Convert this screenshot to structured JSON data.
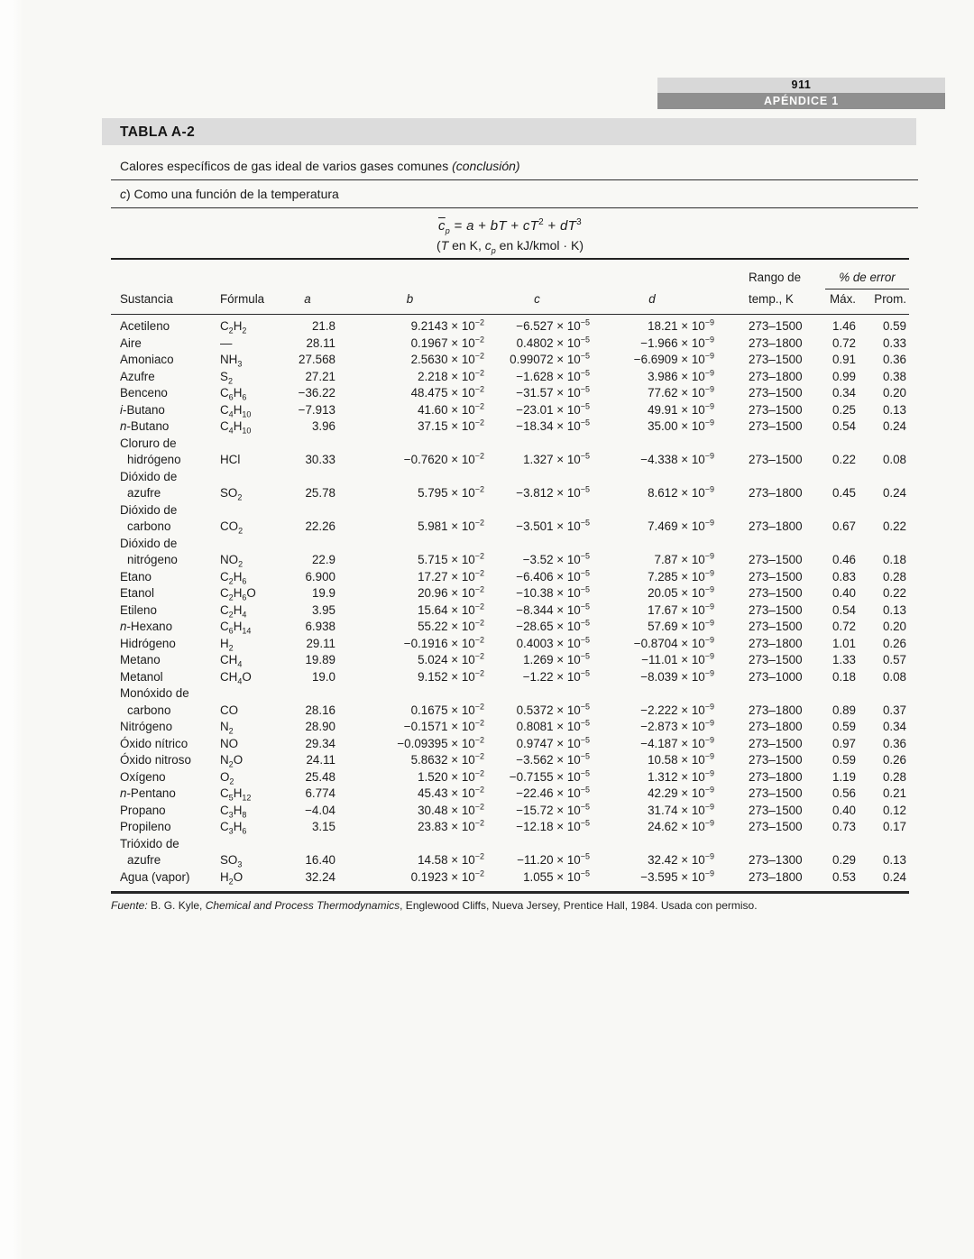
{
  "header": {
    "page_number": "911",
    "appendix_label": "APÉNDICE 1"
  },
  "table": {
    "title": "TABLA A-2",
    "subtitle": [
      {
        "t": "Calores específicos de gas ideal de varios gases comunes "
      },
      {
        "t": "(conclusión)",
        "i": true
      }
    ],
    "part_label": [
      {
        "t": "c",
        "i": true
      },
      {
        "t": ") Como una función de la temperatura"
      }
    ],
    "equation": {
      "main": [
        {
          "t": "c",
          "i": true,
          "ov": true
        },
        {
          "t": "p",
          "i": true,
          "sub": true
        },
        {
          "t": " = "
        },
        {
          "t": "a",
          "i": true
        },
        {
          "t": " + "
        },
        {
          "t": "bT",
          "i": true
        },
        {
          "t": " + "
        },
        {
          "t": "cT",
          "i": true
        },
        {
          "t": "2",
          "sup": true
        },
        {
          "t": " + "
        },
        {
          "t": "dT",
          "i": true
        },
        {
          "t": "3",
          "sup": true
        }
      ],
      "units": [
        {
          "t": "("
        },
        {
          "t": "T",
          "i": true
        },
        {
          "t": " en K, "
        },
        {
          "t": "c",
          "i": true
        },
        {
          "t": "p",
          "i": true,
          "sub": true
        },
        {
          "t": " en kJ/kmol · K)"
        }
      ]
    },
    "columns": {
      "substance": "Sustancia",
      "formula": "Fórmula",
      "a": "a",
      "b": "b",
      "c": "c",
      "d": "d",
      "range_line1": "Rango de",
      "range_line2": "temp., K",
      "error_group": "% de error",
      "max": "Máx.",
      "prom": "Prom."
    },
    "exponents": {
      "b": "−2",
      "c": "−5",
      "d": "−9"
    },
    "rows": [
      {
        "name": [
          [
            {
              "t": "Acetileno"
            }
          ]
        ],
        "formula": "C2H2",
        "a": "21.8",
        "b": "9.2143",
        "c": "−6.527",
        "d": "18.21",
        "range": "273–1500",
        "max": "1.46",
        "prom": "0.59"
      },
      {
        "name": [
          [
            {
              "t": "Aire"
            }
          ]
        ],
        "formula": "—",
        "a": "28.11",
        "b": "0.1967",
        "c": "0.4802",
        "d": "−1.966",
        "range": "273–1800",
        "max": "0.72",
        "prom": "0.33"
      },
      {
        "name": [
          [
            {
              "t": "Amoniaco"
            }
          ]
        ],
        "formula": "NH3",
        "a": "27.568",
        "b": "2.5630",
        "c": "0.99072",
        "d": "−6.6909",
        "range": "273–1500",
        "max": "0.91",
        "prom": "0.36"
      },
      {
        "name": [
          [
            {
              "t": "Azufre"
            }
          ]
        ],
        "formula": "S2",
        "a": "27.21",
        "b": "2.218",
        "c": "−1.628",
        "d": "3.986",
        "range": "273–1800",
        "max": "0.99",
        "prom": "0.38"
      },
      {
        "name": [
          [
            {
              "t": "Benceno"
            }
          ]
        ],
        "formula": "C6H6",
        "a": "−36.22",
        "b": "48.475",
        "c": "−31.57",
        "d": "77.62",
        "range": "273–1500",
        "max": "0.34",
        "prom": "0.20"
      },
      {
        "name": [
          [
            {
              "t": "i",
              "i": true
            },
            {
              "t": "-Butano"
            }
          ]
        ],
        "formula": "C4H10",
        "a": "−7.913",
        "b": "41.60",
        "c": "−23.01",
        "d": "49.91",
        "range": "273–1500",
        "max": "0.25",
        "prom": "0.13"
      },
      {
        "name": [
          [
            {
              "t": "n",
              "i": true
            },
            {
              "t": "-Butano"
            }
          ]
        ],
        "formula": "C4H10",
        "a": "3.96",
        "b": "37.15",
        "c": "−18.34",
        "d": "35.00",
        "range": "273–1500",
        "max": "0.54",
        "prom": "0.24"
      },
      {
        "name": [
          [
            {
              "t": "Cloruro de"
            }
          ],
          [
            {
              "t": "hidrógeno"
            }
          ]
        ],
        "formula": "HCl",
        "a": "30.33",
        "b": "−0.7620",
        "c": "1.327",
        "d": "−4.338",
        "range": "273–1500",
        "max": "0.22",
        "prom": "0.08"
      },
      {
        "name": [
          [
            {
              "t": "Dióxido de"
            }
          ],
          [
            {
              "t": "azufre"
            }
          ]
        ],
        "formula": "SO2",
        "a": "25.78",
        "b": "5.795",
        "c": "−3.812",
        "d": "8.612",
        "range": "273–1800",
        "max": "0.45",
        "prom": "0.24"
      },
      {
        "name": [
          [
            {
              "t": "Dióxido de"
            }
          ],
          [
            {
              "t": "carbono"
            }
          ]
        ],
        "formula": "CO2",
        "a": "22.26",
        "b": "5.981",
        "c": "−3.501",
        "d": "7.469",
        "range": "273–1800",
        "max": "0.67",
        "prom": "0.22"
      },
      {
        "name": [
          [
            {
              "t": "Dióxido de"
            }
          ],
          [
            {
              "t": "nitrógeno"
            }
          ]
        ],
        "formula": "NO2",
        "a": "22.9",
        "b": "5.715",
        "c": "−3.52",
        "d": "7.87",
        "range": "273–1500",
        "max": "0.46",
        "prom": "0.18"
      },
      {
        "name": [
          [
            {
              "t": "Etano"
            }
          ]
        ],
        "formula": "C2H6",
        "a": "6.900",
        "b": "17.27",
        "c": "−6.406",
        "d": "7.285",
        "range": "273–1500",
        "max": "0.83",
        "prom": "0.28"
      },
      {
        "name": [
          [
            {
              "t": "Etanol"
            }
          ]
        ],
        "formula": "C2H6O",
        "a": "19.9",
        "b": "20.96",
        "c": "−10.38",
        "d": "20.05",
        "range": "273–1500",
        "max": "0.40",
        "prom": "0.22"
      },
      {
        "name": [
          [
            {
              "t": "Etileno"
            }
          ]
        ],
        "formula": "C2H4",
        "a": "3.95",
        "b": "15.64",
        "c": "−8.344",
        "d": "17.67",
        "range": "273–1500",
        "max": "0.54",
        "prom": "0.13"
      },
      {
        "name": [
          [
            {
              "t": "n",
              "i": true
            },
            {
              "t": "-Hexano"
            }
          ]
        ],
        "formula": "C6H14",
        "a": "6.938",
        "b": "55.22",
        "c": "−28.65",
        "d": "57.69",
        "range": "273–1500",
        "max": "0.72",
        "prom": "0.20"
      },
      {
        "name": [
          [
            {
              "t": "Hidrógeno"
            }
          ]
        ],
        "formula": "H2",
        "a": "29.11",
        "b": "−0.1916",
        "c": "0.4003",
        "d": "−0.8704",
        "range": "273–1800",
        "max": "1.01",
        "prom": "0.26"
      },
      {
        "name": [
          [
            {
              "t": "Metano"
            }
          ]
        ],
        "formula": "CH4",
        "a": "19.89",
        "b": "5.024",
        "c": "1.269",
        "d": "−11.01",
        "range": "273–1500",
        "max": "1.33",
        "prom": "0.57"
      },
      {
        "name": [
          [
            {
              "t": "Metanol"
            }
          ]
        ],
        "formula": "CH4O",
        "a": "19.0",
        "b": "9.152",
        "c": "−1.22",
        "d": "−8.039",
        "range": "273–1000",
        "max": "0.18",
        "prom": "0.08"
      },
      {
        "name": [
          [
            {
              "t": "Monóxido de"
            }
          ],
          [
            {
              "t": "carbono"
            }
          ]
        ],
        "formula": "CO",
        "a": "28.16",
        "b": "0.1675",
        "c": "0.5372",
        "d": "−2.222",
        "range": "273–1800",
        "max": "0.89",
        "prom": "0.37"
      },
      {
        "name": [
          [
            {
              "t": "Nitrógeno"
            }
          ]
        ],
        "formula": "N2",
        "a": "28.90",
        "b": "−0.1571",
        "c": "0.8081",
        "d": "−2.873",
        "range": "273–1800",
        "max": "0.59",
        "prom": "0.34"
      },
      {
        "name": [
          [
            {
              "t": "Óxido nítrico"
            }
          ]
        ],
        "formula": "NO",
        "a": "29.34",
        "b": "−0.09395",
        "c": "0.9747",
        "d": "−4.187",
        "range": "273–1500",
        "max": "0.97",
        "prom": "0.36"
      },
      {
        "name": [
          [
            {
              "t": "Óxido nitroso"
            }
          ]
        ],
        "formula": "N2O",
        "a": "24.11",
        "b": "5.8632",
        "c": "−3.562",
        "d": "10.58",
        "range": "273–1500",
        "max": "0.59",
        "prom": "0.26"
      },
      {
        "name": [
          [
            {
              "t": "Oxígeno"
            }
          ]
        ],
        "formula": "O2",
        "a": "25.48",
        "b": "1.520",
        "c": "−0.7155",
        "d": "1.312",
        "range": "273–1800",
        "max": "1.19",
        "prom": "0.28"
      },
      {
        "name": [
          [
            {
              "t": "n",
              "i": true
            },
            {
              "t": "-Pentano"
            }
          ]
        ],
        "formula": "C5H12",
        "a": "6.774",
        "b": "45.43",
        "c": "−22.46",
        "d": "42.29",
        "range": "273–1500",
        "max": "0.56",
        "prom": "0.21"
      },
      {
        "name": [
          [
            {
              "t": "Propano"
            }
          ]
        ],
        "formula": "C3H8",
        "a": "−4.04",
        "b": "30.48",
        "c": "−15.72",
        "d": "31.74",
        "range": "273–1500",
        "max": "0.40",
        "prom": "0.12"
      },
      {
        "name": [
          [
            {
              "t": "Propileno"
            }
          ]
        ],
        "formula": "C3H6",
        "a": "3.15",
        "b": "23.83",
        "c": "−12.18",
        "d": "24.62",
        "range": "273–1500",
        "max": "0.73",
        "prom": "0.17"
      },
      {
        "name": [
          [
            {
              "t": "Trióxido de"
            }
          ],
          [
            {
              "t": "azufre"
            }
          ]
        ],
        "formula": "SO3",
        "a": "16.40",
        "b": "14.58",
        "c": "−11.20",
        "d": "32.42",
        "range": "273–1300",
        "max": "0.29",
        "prom": "0.13"
      },
      {
        "name": [
          [
            {
              "t": "Agua (vapor)"
            }
          ]
        ],
        "formula": "H2O",
        "a": "32.24",
        "b": "0.1923",
        "c": "1.055",
        "d": "−3.595",
        "range": "273–1800",
        "max": "0.53",
        "prom": "0.24"
      }
    ]
  },
  "source": [
    {
      "t": "Fuente: ",
      "i": true
    },
    {
      "t": "B. G. Kyle, "
    },
    {
      "t": "Chemical and Process Thermodynamics",
      "i": true
    },
    {
      "t": ", Englewood Cliffs, Nueva Jersey, Prentice Hall, 1984. Usada con permiso."
    }
  ]
}
